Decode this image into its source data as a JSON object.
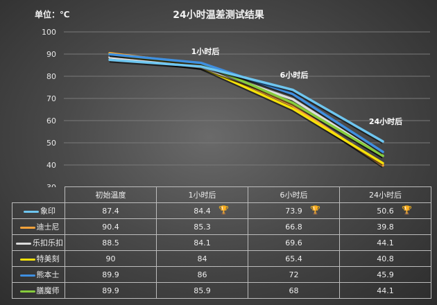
{
  "header": {
    "unit_label": "单位：℃",
    "title": "24小时温差测试结果"
  },
  "chart_data": {
    "type": "line",
    "title": "24小时温差测试结果",
    "ylabel": "单位：℃",
    "xlabel": "",
    "categories": [
      "初始温度",
      "1小时后",
      "6小时后",
      "24小时后"
    ],
    "ylim": [
      30,
      100
    ],
    "yticks": [
      100,
      90,
      80,
      70,
      60,
      50,
      40,
      30
    ],
    "grid": true,
    "legend_position": "table-left",
    "point_annotations": [
      "1小时后",
      "6小时后",
      "24小时后"
    ],
    "series": [
      {
        "name": "象印",
        "color": "#6ec6f0",
        "values": [
          87.4,
          84.4,
          73.9,
          50.6
        ]
      },
      {
        "name": "迪士尼",
        "color": "#f5a23a",
        "values": [
          90.4,
          85.3,
          66.8,
          39.8
        ]
      },
      {
        "name": "乐扣乐扣",
        "color": "#dcdcdc",
        "values": [
          88.5,
          84.1,
          69.6,
          44.1
        ]
      },
      {
        "name": "特美刻",
        "color": "#f5e10a",
        "values": [
          90,
          84,
          65.4,
          40.8
        ]
      },
      {
        "name": "熊本士",
        "color": "#3f8fe0",
        "values": [
          89.9,
          86,
          72,
          45.9
        ]
      },
      {
        "name": "膳魔师",
        "color": "#86cc3c",
        "values": [
          89.9,
          85.9,
          68,
          44.1
        ]
      }
    ],
    "winners": {
      "1小时后": "象印",
      "6小时后": "象印",
      "24小时后": "象印"
    }
  },
  "table": {
    "headers": [
      "初始温度",
      "1小时后",
      "6小时后",
      "24小时后"
    ],
    "rows": [
      {
        "name": "象印",
        "color": "#6ec6f0",
        "cells": [
          "87.4",
          "84.4",
          "73.9",
          "50.6"
        ],
        "trophy": [
          false,
          true,
          true,
          true
        ]
      },
      {
        "name": "迪士尼",
        "color": "#f5a23a",
        "cells": [
          "90.4",
          "85.3",
          "66.8",
          "39.8"
        ],
        "trophy": [
          false,
          false,
          false,
          false
        ]
      },
      {
        "name": "乐扣乐扣",
        "color": "#dcdcdc",
        "cells": [
          "88.5",
          "84.1",
          "69.6",
          "44.1"
        ],
        "trophy": [
          false,
          false,
          false,
          false
        ]
      },
      {
        "name": "特美刻",
        "color": "#f5e10a",
        "cells": [
          "90",
          "84",
          "65.4",
          "40.8"
        ],
        "trophy": [
          false,
          false,
          false,
          false
        ]
      },
      {
        "name": "熊本士",
        "color": "#3f8fe0",
        "cells": [
          "89.9",
          "86",
          "72",
          "45.9"
        ],
        "trophy": [
          false,
          false,
          false,
          false
        ]
      },
      {
        "name": "膳魔师",
        "color": "#86cc3c",
        "cells": [
          "89.9",
          "85.9",
          "68",
          "44.1"
        ],
        "trophy": [
          false,
          false,
          false,
          false
        ]
      }
    ],
    "trophy_icon": "🏆"
  }
}
